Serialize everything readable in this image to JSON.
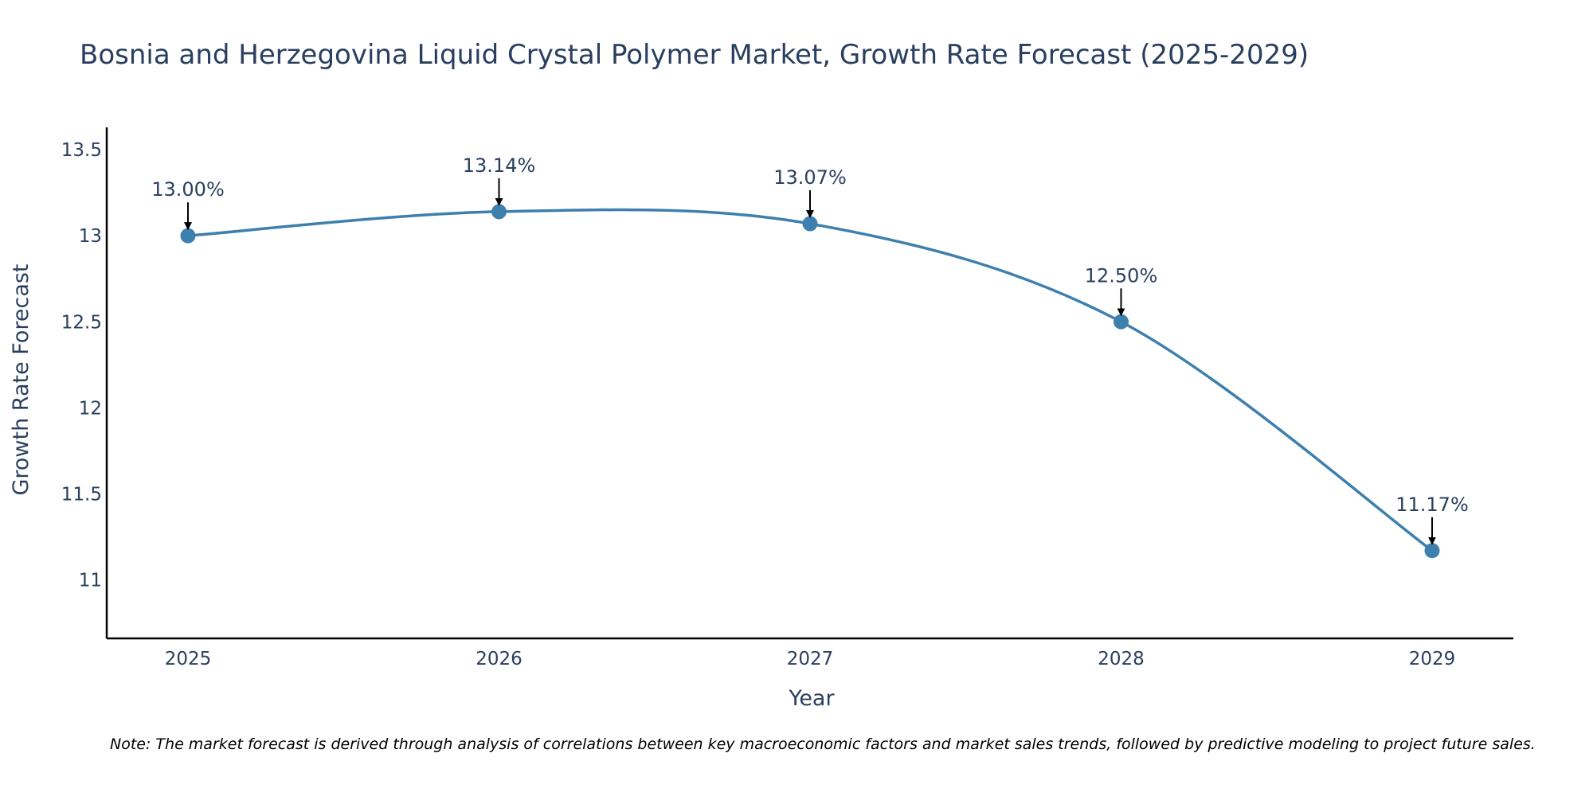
{
  "chart_data": {
    "type": "line",
    "title": "Bosnia and Herzegovina Liquid Crystal Polymer Market, Growth Rate Forecast (2025-2029)",
    "xlabel": "Year",
    "ylabel": "Growth Rate Forecast",
    "categories": [
      "2025",
      "2026",
      "2027",
      "2028",
      "2029"
    ],
    "series": [
      {
        "name": "Growth Rate Forecast",
        "values": [
          13.0,
          13.14,
          13.07,
          12.5,
          11.17
        ],
        "labels": [
          "13.00%",
          "13.14%",
          "13.07%",
          "12.50%",
          "11.17%"
        ]
      }
    ],
    "ylim": [
      10.66,
      13.63
    ],
    "yticks": [
      11,
      11.5,
      12,
      12.5,
      13,
      13.5
    ],
    "ytick_labels": [
      "11",
      "11.5",
      "12",
      "12.5",
      "13",
      "13.5"
    ],
    "grid": false,
    "line_color": "#3d7fad",
    "marker_color": "#3d7fad",
    "note": "Note: The market forecast is derived through analysis of correlations between key macroeconomic factors and market sales trends, followed by predictive modeling to project future sales."
  }
}
